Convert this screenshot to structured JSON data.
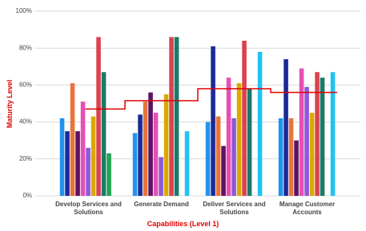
{
  "chart_data": {
    "type": "bar",
    "x_label": "Capabilities (Level 1)",
    "y_label": "Maturity Level",
    "categories": [
      "Develop Services and Solutions",
      "Generate Demand",
      "Deliver Services and Solutions",
      "Manage Customer Accounts"
    ],
    "ylim": [
      0,
      100
    ],
    "yticks": [
      {
        "value": 0,
        "label": "0%"
      },
      {
        "value": 20,
        "label": "20%"
      },
      {
        "value": 40,
        "label": "40%"
      },
      {
        "value": 60,
        "label": "60%"
      },
      {
        "value": 80,
        "label": "80%"
      },
      {
        "value": 100,
        "label": "100%"
      }
    ],
    "grid": true,
    "series": [
      {
        "color": "#2193ee",
        "values": [
          42,
          34,
          40,
          42
        ]
      },
      {
        "color": "#1b2a98",
        "values": [
          35,
          44,
          81,
          74
        ]
      },
      {
        "color": "#e8743b",
        "values": [
          61,
          51,
          43,
          42
        ]
      },
      {
        "color": "#5e1262",
        "values": [
          35,
          56,
          27,
          30
        ]
      },
      {
        "color": "#e64fb4",
        "values": [
          51,
          45,
          64,
          69
        ]
      },
      {
        "color": "#8c5ad8",
        "values": [
          26,
          21,
          42,
          59
        ]
      },
      {
        "color": "#dba800",
        "values": [
          43,
          55,
          61,
          45
        ]
      },
      {
        "color": "#d9434f",
        "values": [
          86,
          86,
          84,
          67
        ]
      },
      {
        "color": "#1a7a6a",
        "values": [
          67,
          86,
          58,
          64
        ]
      },
      {
        "color": "#1fa350",
        "values": [
          23,
          null,
          null,
          null
        ]
      },
      {
        "color": "#22c3f2",
        "values": [
          null,
          35,
          78,
          67
        ]
      }
    ],
    "step_line": {
      "color": "#e00000",
      "values": [
        47,
        51.5,
        58,
        56
      ]
    }
  }
}
